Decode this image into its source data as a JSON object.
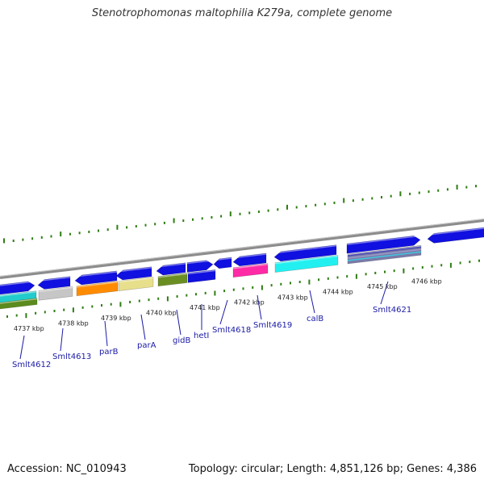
{
  "header": {
    "title": "Stenotrophomonas maltophilia K279a, complete genome"
  },
  "footer": {
    "accession": "Accession: NC_010943",
    "summary": "Topology: circular; Length: 4,851,126 bp; Genes: 4,386"
  },
  "colors": {
    "backbone": "#8c8c8c",
    "tick": "#2e7d12",
    "gene_blue": "#1010e0",
    "label": "#1a1aa6"
  },
  "kbp_labels": [
    "4737 kbp",
    "4738 kbp",
    "4739 kbp",
    "4740 kbp",
    "4741 kbp",
    "4742 kbp",
    "4743 kbp",
    "4744 kbp",
    "4745 kbp",
    "4746 kbp"
  ],
  "gene_labels": [
    "Smlt4612",
    "Smlt4613",
    "parB",
    "parA",
    "gidB",
    "hetI",
    "Smlt4618",
    "Smlt4619",
    "calB",
    "Smlt4621"
  ]
}
